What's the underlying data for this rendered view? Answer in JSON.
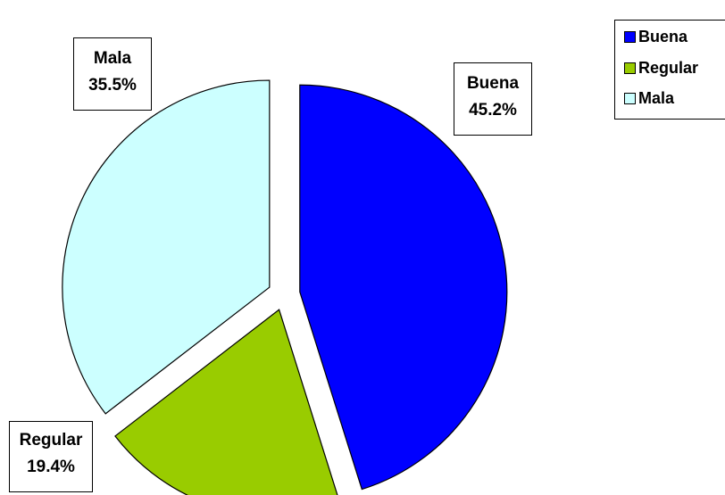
{
  "chart_data": {
    "type": "pie",
    "slices": [
      {
        "name": "Buena",
        "value": 45.2,
        "label": "45.2%",
        "color": "#0000FF"
      },
      {
        "name": "Regular",
        "value": 19.4,
        "label": "19.4%",
        "color": "#99CC00"
      },
      {
        "name": "Mala",
        "value": 35.5,
        "label": "35.5%",
        "color": "#CCFFFF"
      }
    ],
    "legend": {
      "placement": "top-right"
    },
    "exploded": true
  }
}
